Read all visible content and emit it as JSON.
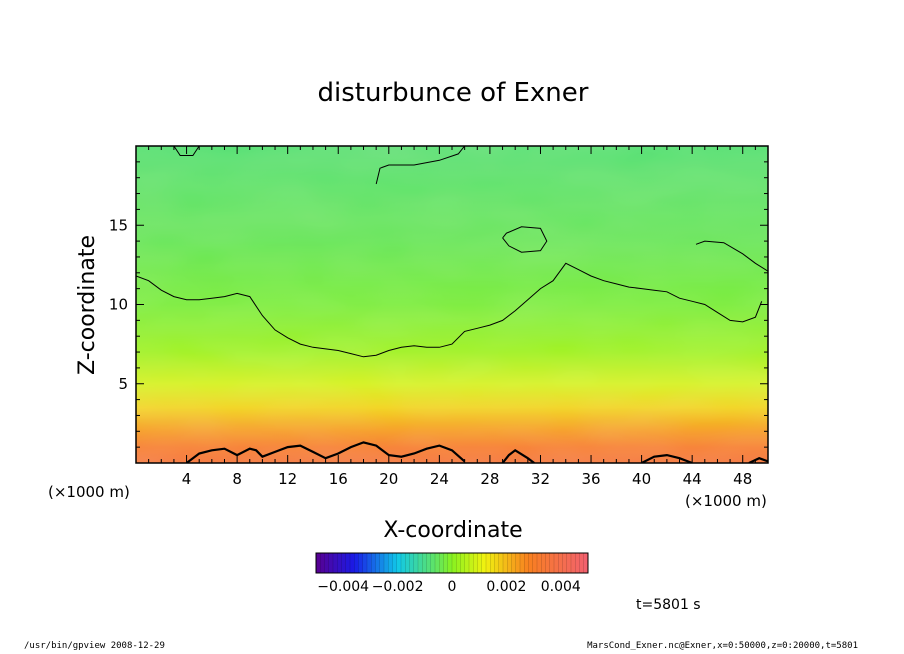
{
  "chart_data": {
    "type": "heatmap",
    "title": "disturbunce of Exner",
    "xlabel": "X-coordinate",
    "ylabel": "Z-coordinate",
    "x_unit_left": "(×1000 m)",
    "x_unit_right": "(×1000 m)",
    "xlim": [
      0,
      50
    ],
    "ylim": [
      0,
      20
    ],
    "x_ticks": [
      4,
      8,
      12,
      16,
      20,
      24,
      28,
      32,
      36,
      40,
      44,
      48
    ],
    "y_ticks": [
      5,
      10,
      15
    ],
    "colorbar": {
      "range": [
        -0.005,
        0.005
      ],
      "tick_values": [
        -0.004,
        -0.002,
        0,
        0.002,
        0.004
      ],
      "tick_labels": [
        "−0.004",
        "−0.002",
        "0",
        "0.002",
        "0.004"
      ]
    },
    "vertical_profile": [
      {
        "z": 0.0,
        "value": 0.0035
      },
      {
        "z": 1.0,
        "value": 0.003
      },
      {
        "z": 2.0,
        "value": 0.0024
      },
      {
        "z": 3.5,
        "value": 0.0016
      },
      {
        "z": 5.0,
        "value": 0.0009
      },
      {
        "z": 7.0,
        "value": 0.0003
      },
      {
        "z": 10.0,
        "value": -0.0002
      },
      {
        "z": 14.0,
        "value": -0.0005
      },
      {
        "z": 18.0,
        "value": -0.0007
      },
      {
        "z": 20.0,
        "value": -0.0008
      }
    ],
    "contour_lines": [
      [
        [
          0,
          11.8
        ],
        [
          1,
          11.5
        ],
        [
          2,
          10.9
        ],
        [
          3,
          10.5
        ],
        [
          4,
          10.3
        ],
        [
          5,
          10.3
        ],
        [
          6,
          10.4
        ],
        [
          7,
          10.5
        ],
        [
          8,
          10.7
        ],
        [
          9,
          10.5
        ],
        [
          10,
          9.3
        ],
        [
          11,
          8.4
        ],
        [
          12,
          7.9
        ],
        [
          13,
          7.5
        ],
        [
          14,
          7.3
        ],
        [
          15,
          7.2
        ],
        [
          16,
          7.1
        ],
        [
          17,
          6.9
        ],
        [
          18,
          6.7
        ],
        [
          19,
          6.8
        ],
        [
          20,
          7.1
        ],
        [
          21,
          7.3
        ],
        [
          22,
          7.4
        ],
        [
          23,
          7.3
        ],
        [
          24,
          7.3
        ],
        [
          25,
          7.5
        ],
        [
          26,
          8.3
        ],
        [
          27,
          8.5
        ],
        [
          28,
          8.7
        ],
        [
          29,
          9.0
        ],
        [
          30,
          9.6
        ],
        [
          31,
          10.3
        ],
        [
          32,
          11.0
        ],
        [
          33,
          11.5
        ],
        [
          34,
          12.6
        ],
        [
          35,
          12.2
        ],
        [
          36,
          11.8
        ],
        [
          37,
          11.5
        ],
        [
          38,
          11.3
        ],
        [
          39,
          11.1
        ],
        [
          40,
          11.0
        ],
        [
          41,
          10.9
        ],
        [
          42,
          10.8
        ],
        [
          43,
          10.4
        ],
        [
          44,
          10.2
        ],
        [
          45,
          10.0
        ],
        [
          46,
          9.5
        ],
        [
          47,
          9.0
        ],
        [
          48,
          8.9
        ],
        [
          49,
          9.2
        ],
        [
          49.5,
          10.2
        ]
      ],
      [
        [
          19,
          17.6
        ],
        [
          19.3,
          18.6
        ],
        [
          20,
          18.8
        ],
        [
          22,
          18.8
        ],
        [
          24,
          19.1
        ],
        [
          25.5,
          19.5
        ],
        [
          26,
          20
        ]
      ],
      [
        [
          29,
          14.2
        ],
        [
          29.5,
          13.7
        ],
        [
          30.5,
          13.3
        ],
        [
          32,
          13.4
        ],
        [
          32.5,
          14.0
        ],
        [
          32,
          14.8
        ],
        [
          30.5,
          14.9
        ],
        [
          29.3,
          14.5
        ],
        [
          29,
          14.2
        ]
      ],
      [
        [
          44.3,
          13.8
        ],
        [
          45,
          14.0
        ],
        [
          46.5,
          13.9
        ],
        [
          48,
          13.2
        ],
        [
          49,
          12.6
        ],
        [
          50,
          12.1
        ]
      ],
      [
        [
          3,
          20
        ],
        [
          3.5,
          19.4
        ],
        [
          4.5,
          19.4
        ],
        [
          5,
          20
        ]
      ]
    ],
    "bottom_contours": [
      [
        [
          4,
          0
        ],
        [
          5,
          0.6
        ],
        [
          6,
          0.8
        ],
        [
          7,
          0.9
        ],
        [
          8,
          0.5
        ],
        [
          9,
          0.9
        ],
        [
          9.5,
          0.8
        ],
        [
          10,
          0.4
        ],
        [
          11,
          0.7
        ],
        [
          12,
          1.0
        ],
        [
          13,
          1.1
        ],
        [
          14,
          0.7
        ],
        [
          15,
          0.3
        ],
        [
          16,
          0.6
        ],
        [
          17,
          1.0
        ],
        [
          18,
          1.3
        ],
        [
          19,
          1.1
        ],
        [
          20,
          0.5
        ],
        [
          21,
          0.4
        ],
        [
          22,
          0.6
        ],
        [
          23,
          0.9
        ],
        [
          24,
          1.1
        ],
        [
          25,
          0.8
        ],
        [
          26,
          0.1
        ]
      ],
      [
        [
          29,
          0
        ],
        [
          29.5,
          0.5
        ],
        [
          30,
          0.8
        ],
        [
          31,
          0.3
        ],
        [
          31.5,
          0
        ]
      ],
      [
        [
          40,
          0
        ],
        [
          41,
          0.4
        ],
        [
          42,
          0.5
        ],
        [
          43,
          0.3
        ],
        [
          44,
          0
        ]
      ],
      [
        [
          48.5,
          0
        ],
        [
          49.3,
          0.3
        ],
        [
          50,
          0.1
        ]
      ]
    ]
  },
  "annotations": {
    "time_label": "t=5801 s",
    "footer_left": "/usr/bin/gpview   2008-12-29",
    "footer_right": "MarsCond_Exner.nc@Exner,x=0:50000,z=0:20000,t=5801"
  },
  "colors": {
    "frame": "#000000",
    "contour": "#000000"
  }
}
